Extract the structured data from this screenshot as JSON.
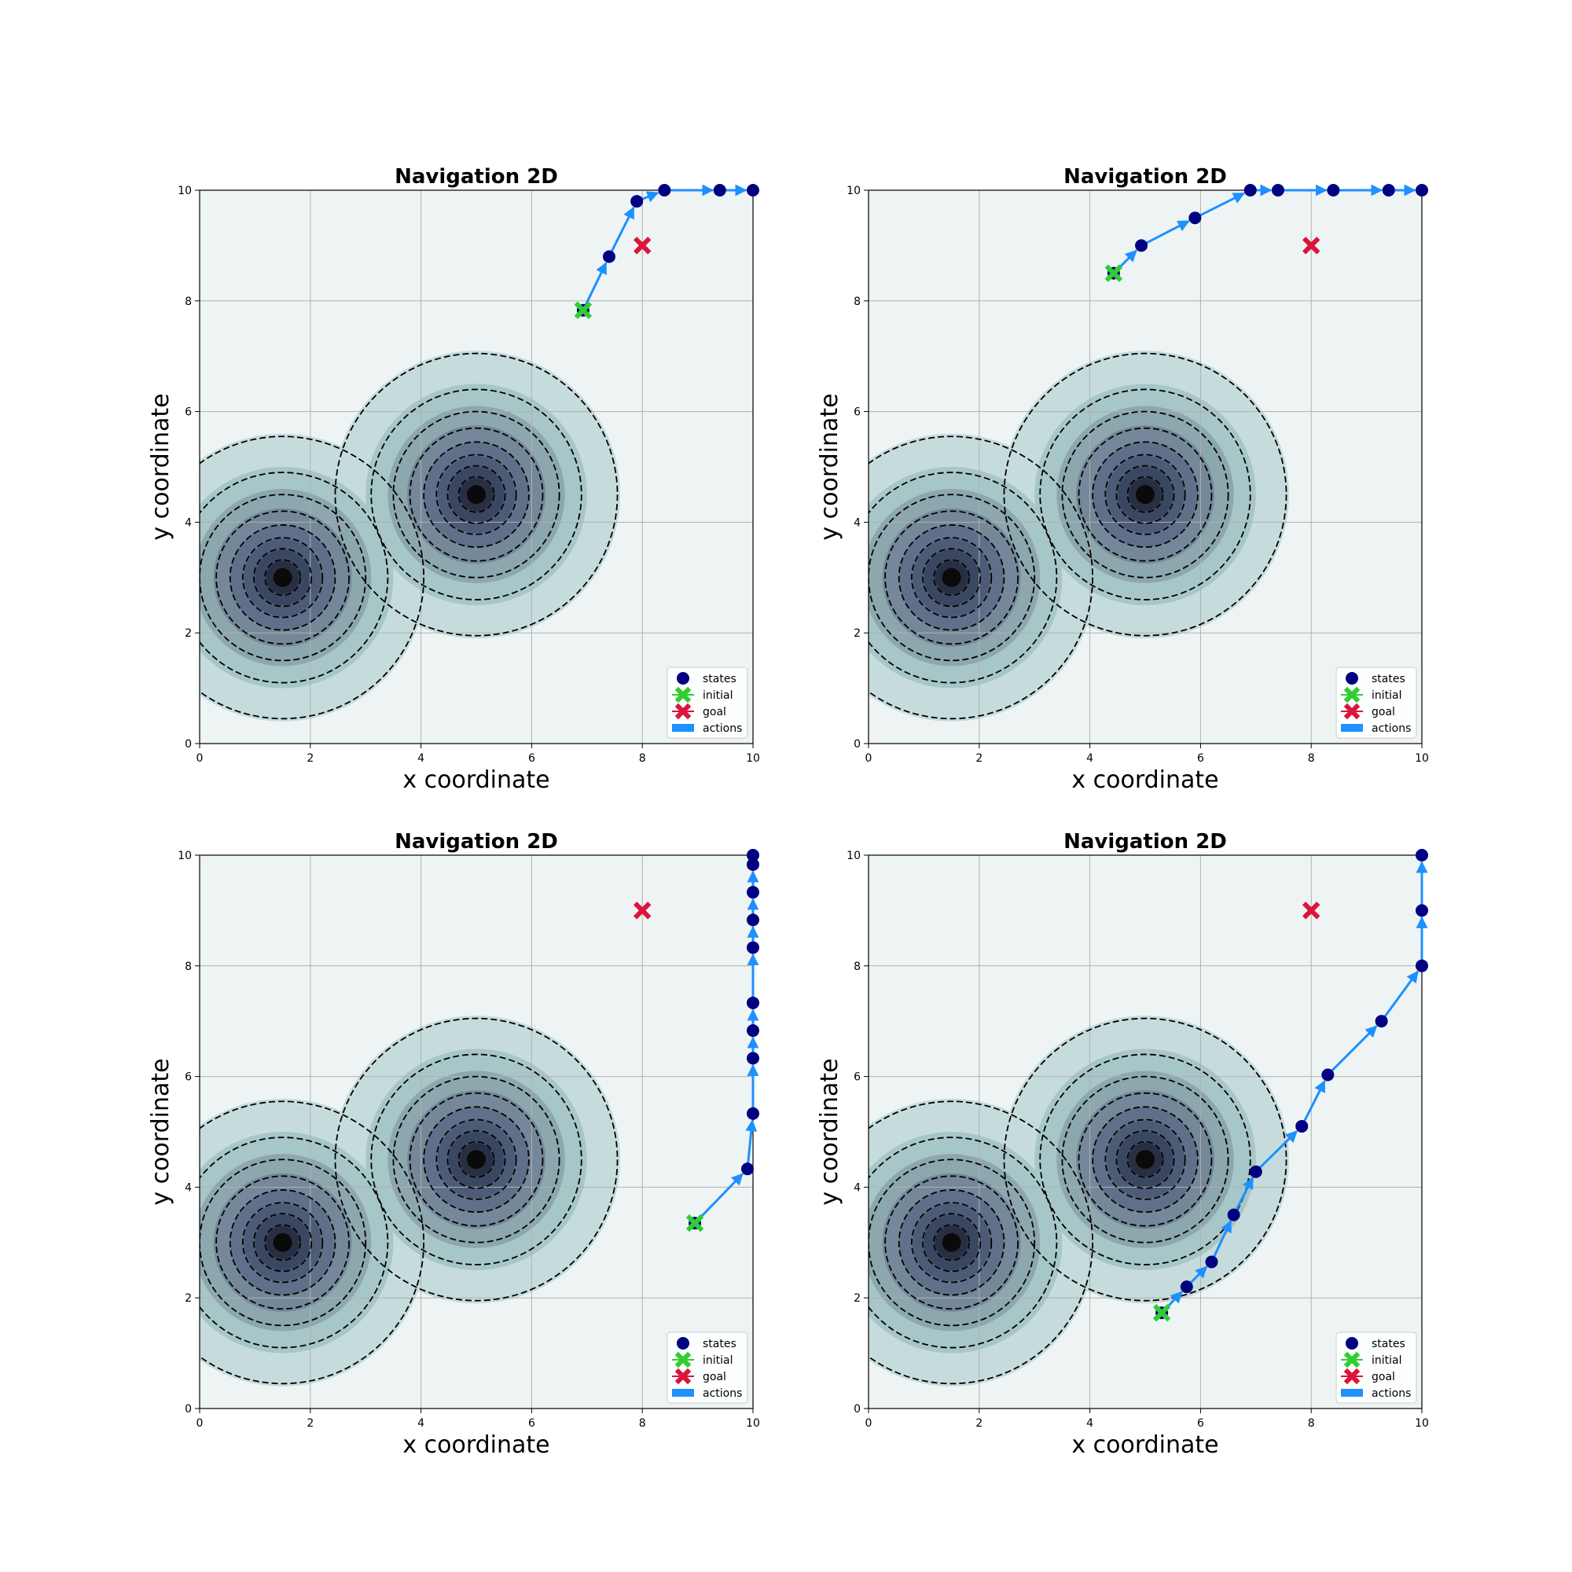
{
  "figure": {
    "background": "#ffffff"
  },
  "chart_data": [
    {
      "type": "line",
      "title": "Navigation 2D",
      "xlabel": "x coordinate",
      "ylabel": "y coordinate",
      "xlim": [
        0,
        10
      ],
      "ylim": [
        0,
        10
      ],
      "x_ticks": [
        "0",
        "2",
        "4",
        "6",
        "8",
        "10"
      ],
      "y_ticks": [
        "0",
        "2",
        "4",
        "6",
        "8",
        "10"
      ],
      "grid": true,
      "legend_position": "lower-right",
      "legend": [
        {
          "label": "states",
          "marker": "circle",
          "color": "#000080"
        },
        {
          "label": "initial",
          "marker": "x",
          "color": "#32cd32"
        },
        {
          "label": "goal",
          "marker": "x",
          "color": "#dc143c"
        },
        {
          "label": "actions",
          "marker": "patch",
          "color": "#1e90ff"
        }
      ],
      "obstacles": [
        {
          "cx": 1.5,
          "cy": 3.0
        },
        {
          "cx": 5.0,
          "cy": 4.5
        }
      ],
      "initial": [
        6.93,
        7.83
      ],
      "goal": [
        8.0,
        9.0
      ],
      "states": [
        [
          6.93,
          7.83
        ],
        [
          7.4,
          8.8
        ],
        [
          7.9,
          9.8
        ],
        [
          8.4,
          10.0
        ],
        [
          9.4,
          10.0
        ],
        [
          10.0,
          10.0
        ]
      ]
    },
    {
      "type": "line",
      "title": "Navigation 2D",
      "xlabel": "x coordinate",
      "ylabel": "y coordinate",
      "xlim": [
        0,
        10
      ],
      "ylim": [
        0,
        10
      ],
      "x_ticks": [
        "0",
        "2",
        "4",
        "6",
        "8",
        "10"
      ],
      "y_ticks": [
        "0",
        "2",
        "4",
        "6",
        "8",
        "10"
      ],
      "grid": true,
      "legend_position": "lower-right",
      "legend": [
        {
          "label": "states",
          "marker": "circle",
          "color": "#000080"
        },
        {
          "label": "initial",
          "marker": "x",
          "color": "#32cd32"
        },
        {
          "label": "goal",
          "marker": "x",
          "color": "#dc143c"
        },
        {
          "label": "actions",
          "marker": "patch",
          "color": "#1e90ff"
        }
      ],
      "obstacles": [
        {
          "cx": 1.5,
          "cy": 3.0
        },
        {
          "cx": 5.0,
          "cy": 4.5
        }
      ],
      "initial": [
        4.43,
        8.5
      ],
      "goal": [
        8.0,
        9.0
      ],
      "states": [
        [
          4.43,
          8.5
        ],
        [
          4.93,
          9.0
        ],
        [
          5.9,
          9.5
        ],
        [
          6.9,
          10.0
        ],
        [
          7.4,
          10.0
        ],
        [
          8.4,
          10.0
        ],
        [
          9.4,
          10.0
        ],
        [
          10.0,
          10.0
        ]
      ]
    },
    {
      "type": "line",
      "title": "Navigation 2D",
      "xlabel": "x coordinate",
      "ylabel": "y coordinate",
      "xlim": [
        0,
        10
      ],
      "ylim": [
        0,
        10
      ],
      "x_ticks": [
        "0",
        "2",
        "4",
        "6",
        "8",
        "10"
      ],
      "y_ticks": [
        "0",
        "2",
        "4",
        "6",
        "8",
        "10"
      ],
      "grid": true,
      "legend_position": "lower-right",
      "legend": [
        {
          "label": "states",
          "marker": "circle",
          "color": "#000080"
        },
        {
          "label": "initial",
          "marker": "x",
          "color": "#32cd32"
        },
        {
          "label": "goal",
          "marker": "x",
          "color": "#dc143c"
        },
        {
          "label": "actions",
          "marker": "patch",
          "color": "#1e90ff"
        }
      ],
      "obstacles": [
        {
          "cx": 1.5,
          "cy": 3.0
        },
        {
          "cx": 5.0,
          "cy": 4.5
        }
      ],
      "initial": [
        8.95,
        3.35
      ],
      "goal": [
        8.0,
        9.0
      ],
      "states": [
        [
          8.95,
          3.35
        ],
        [
          9.9,
          4.33
        ],
        [
          10.0,
          5.33
        ],
        [
          10.0,
          6.33
        ],
        [
          10.0,
          6.83
        ],
        [
          10.0,
          7.33
        ],
        [
          10.0,
          8.33
        ],
        [
          10.0,
          8.83
        ],
        [
          10.0,
          9.33
        ],
        [
          10.0,
          9.83
        ],
        [
          10.0,
          10.0
        ]
      ]
    },
    {
      "type": "line",
      "title": "Navigation 2D",
      "xlabel": "x coordinate",
      "ylabel": "y coordinate",
      "xlim": [
        0,
        10
      ],
      "ylim": [
        0,
        10
      ],
      "x_ticks": [
        "0",
        "2",
        "4",
        "6",
        "8",
        "10"
      ],
      "y_ticks": [
        "0",
        "2",
        "4",
        "6",
        "8",
        "10"
      ],
      "grid": true,
      "legend_position": "lower-right",
      "legend": [
        {
          "label": "states",
          "marker": "circle",
          "color": "#000080"
        },
        {
          "label": "initial",
          "marker": "x",
          "color": "#32cd32"
        },
        {
          "label": "goal",
          "marker": "x",
          "color": "#dc143c"
        },
        {
          "label": "actions",
          "marker": "patch",
          "color": "#1e90ff"
        }
      ],
      "obstacles": [
        {
          "cx": 1.5,
          "cy": 3.0
        },
        {
          "cx": 5.0,
          "cy": 4.5
        }
      ],
      "initial": [
        5.3,
        1.73
      ],
      "goal": [
        8.0,
        9.0
      ],
      "states": [
        [
          5.3,
          1.73
        ],
        [
          5.75,
          2.2
        ],
        [
          6.2,
          2.65
        ],
        [
          6.6,
          3.5
        ],
        [
          7.0,
          4.28
        ],
        [
          7.83,
          5.1
        ],
        [
          8.3,
          6.03
        ],
        [
          9.27,
          7.0
        ],
        [
          10.0,
          8.0
        ],
        [
          10.0,
          9.0
        ],
        [
          10.0,
          10.0
        ]
      ]
    }
  ]
}
